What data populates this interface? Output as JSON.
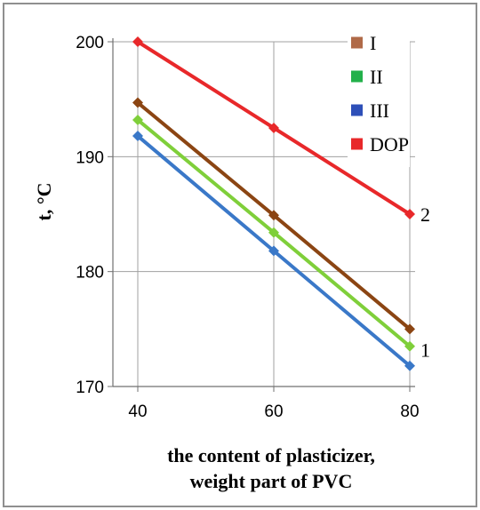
{
  "chart_data": {
    "type": "line",
    "title": "",
    "xlabel_lines": [
      "the content of plasticizer,",
      "weight part of PVC"
    ],
    "ylabel": "t, °C",
    "x": [
      40,
      60,
      80
    ],
    "xlim": [
      40,
      80
    ],
    "ylim": [
      170,
      200
    ],
    "x_ticks": [
      40,
      60,
      80
    ],
    "y_ticks": [
      170,
      180,
      190,
      200
    ],
    "grid": true,
    "legend_position": "top-right",
    "series": [
      {
        "name": "I",
        "values": [
          194.7,
          184.9,
          175.0
        ],
        "color": "#8b4513"
      },
      {
        "name": "II",
        "values": [
          193.2,
          183.4,
          173.5
        ],
        "color": "#7fcf3a"
      },
      {
        "name": "III",
        "values": [
          191.8,
          181.8,
          171.8
        ],
        "color": "#3a78c8"
      },
      {
        "name": "DOP",
        "values": [
          200.0,
          192.5,
          185.0
        ],
        "color": "#e8282a"
      }
    ],
    "legend_colors": {
      "I": "#b06a48",
      "II": "#22b04a",
      "III": "#2e4fb8",
      "DOP": "#e8282a"
    },
    "annotations": [
      {
        "text": "2",
        "x": 80,
        "y": 185.0
      },
      {
        "text": "1",
        "x": 80,
        "y": 173.2
      }
    ]
  }
}
